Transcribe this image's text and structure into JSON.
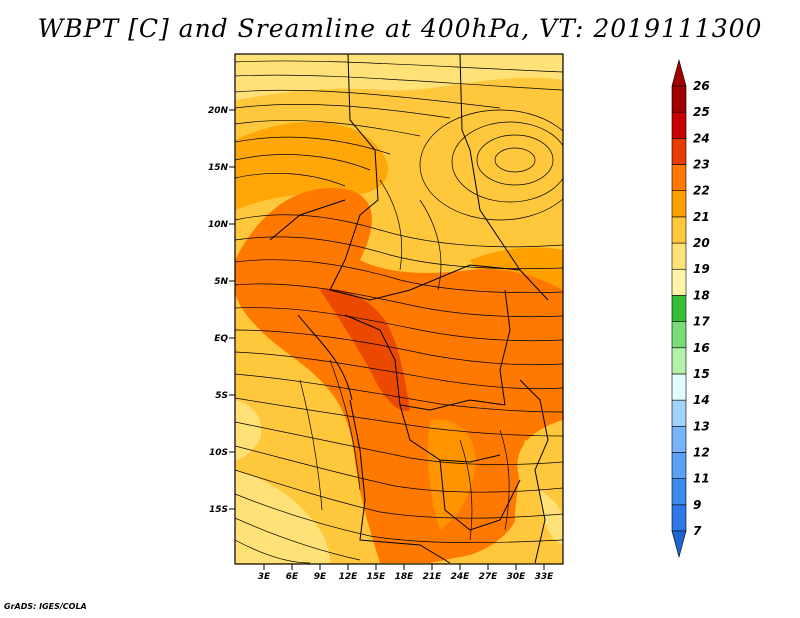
{
  "title": "WBPT [C] and Sreamline at 400hPa, VT: 2019111300",
  "credit": "GrADS: IGES/COLA",
  "map": {
    "lat_labels": [
      "20N",
      "15N",
      "10N",
      "5N",
      "EQ",
      "5S",
      "10S",
      "15S"
    ],
    "lon_labels": [
      "3E",
      "6E",
      "9E",
      "12E",
      "15E",
      "18E",
      "21E",
      "24E",
      "27E",
      "30E",
      "33E"
    ]
  },
  "colorbar": {
    "levels": [
      "7",
      "9",
      "11",
      "12",
      "13",
      "14",
      "15",
      "16",
      "17",
      "18",
      "19",
      "20",
      "21",
      "22",
      "23",
      "24",
      "25",
      "26"
    ],
    "colors": [
      "#1e64d2",
      "#2d78e6",
      "#3c8cf0",
      "#5aa0f5",
      "#78b4fa",
      "#a0d2fa",
      "#e1ffff",
      "#b4f0aa",
      "#78dc78",
      "#37be37",
      "#fff5aa",
      "#ffe178",
      "#ffc83c",
      "#ffa000",
      "#ff7800",
      "#e63c00",
      "#c80000",
      "#a00000"
    ]
  }
}
